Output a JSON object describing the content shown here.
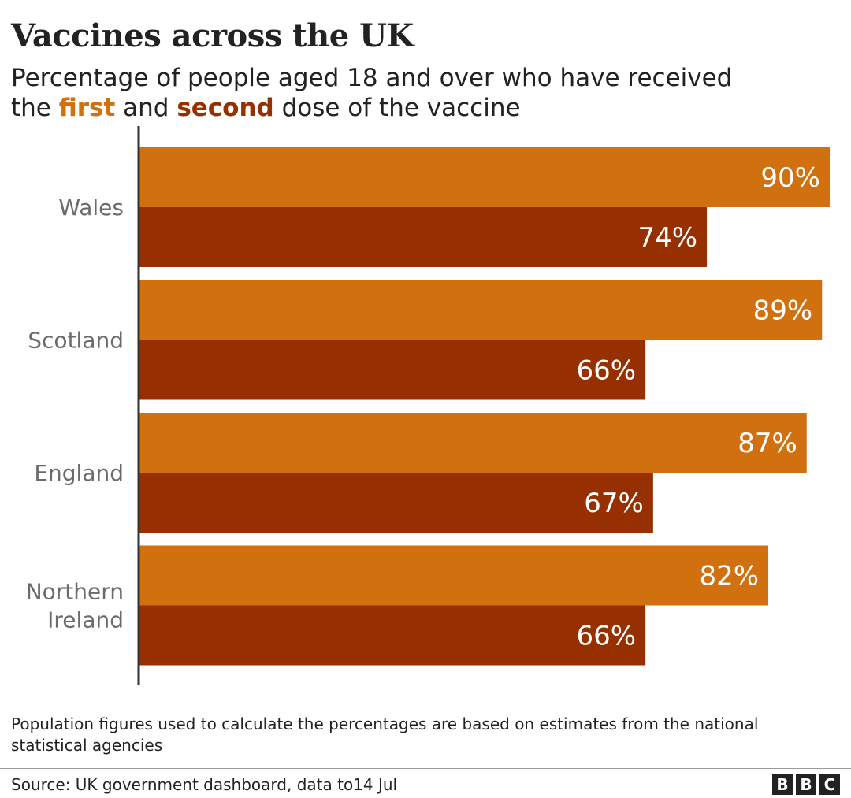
{
  "header": {
    "title": "Vaccines across the UK",
    "subtitle_line1": "Percentage of people aged 18 and over who have received",
    "subtitle_pre": "the ",
    "subtitle_first": "first",
    "subtitle_mid": " and ",
    "subtitle_second": "second",
    "subtitle_post": " dose of the vaccine"
  },
  "colors": {
    "first_dose": "#d1700e",
    "second_dose": "#963000",
    "axis": "#333333",
    "category_text": "#6b6b6b"
  },
  "chart_data": {
    "type": "bar",
    "orientation": "horizontal",
    "title": "Vaccines across the UK",
    "subtitle": "Percentage of people aged 18 and over who have received the first and second dose of the vaccine",
    "categories": [
      [
        "Wales"
      ],
      [
        "Scotland"
      ],
      [
        "England"
      ],
      [
        "Northern",
        "Ireland"
      ]
    ],
    "series": [
      {
        "name": "first",
        "values": [
          90,
          89,
          87,
          82
        ],
        "labels": [
          "90%",
          "89%",
          "87%",
          "82%"
        ]
      },
      {
        "name": "second",
        "values": [
          74,
          66,
          67,
          66
        ],
        "labels": [
          "74%",
          "66%",
          "67%",
          "66%"
        ]
      }
    ],
    "xlim": [
      0,
      90
    ],
    "grid": false,
    "legend": "in subtitle"
  },
  "footer": {
    "note": "Population figures used to calculate the percentages are based on estimates from the national statistical agencies",
    "source": "Source: UK government dashboard, data to14 Jul",
    "logo_letters": [
      "B",
      "B",
      "C"
    ]
  }
}
